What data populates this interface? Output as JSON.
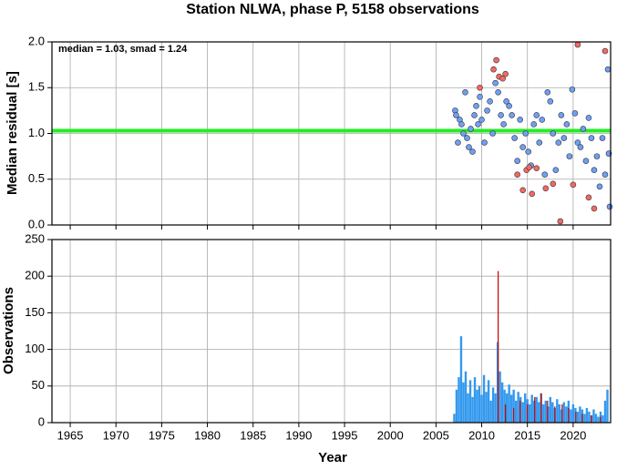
{
  "chart_data": [
    {
      "type": "scatter",
      "title": "Station NLWA, phase P, 5158 observations",
      "ylabel": "Median residual [s]",
      "annotation": "median = 1.03, smad = 1.24",
      "median_line": 1.03,
      "median_color": "#22ee22",
      "xlim": [
        1963,
        2024.1
      ],
      "ylim": [
        0,
        2
      ],
      "yticks": [
        {
          "value": 0,
          "label": "0.0"
        },
        0.5,
        {
          "value": 1,
          "label": "1.0"
        },
        1.5,
        {
          "value": 2,
          "label": "2.0"
        }
      ],
      "grid": true,
      "series": [
        {
          "color": "#6fa0f0",
          "x": [
            2007.1,
            2007.2,
            2007.4,
            2007.6,
            2007.8,
            2008.0,
            2008.2,
            2008.4,
            2008.6,
            2008.8,
            2009.0,
            2009.2,
            2009.4,
            2009.6,
            2009.8,
            2010.0,
            2010.3,
            2010.6,
            2010.9,
            2011.2,
            2011.5,
            2011.8,
            2012.1,
            2012.4,
            2012.7,
            2013.0,
            2013.3,
            2013.6,
            2013.9,
            2014.2,
            2014.5,
            2014.8,
            2015.1,
            2015.4,
            2015.7,
            2016.0,
            2016.3,
            2016.6,
            2016.9,
            2017.2,
            2017.5,
            2017.8,
            2018.1,
            2018.4,
            2018.7,
            2019.0,
            2019.3,
            2019.6,
            2019.9,
            2020.2,
            2020.5,
            2020.8,
            2021.1,
            2021.4,
            2021.7,
            2022.0,
            2022.3,
            2022.6,
            2022.9,
            2023.2,
            2023.5,
            2023.8,
            2024.0,
            2023.9
          ],
          "y": [
            1.25,
            1.2,
            0.9,
            1.15,
            1.1,
            1.0,
            1.45,
            0.95,
            0.85,
            1.05,
            0.8,
            1.2,
            1.3,
            1.1,
            1.4,
            1.15,
            0.9,
            1.25,
            1.35,
            1.0,
            1.55,
            1.45,
            1.2,
            1.1,
            1.35,
            1.3,
            1.2,
            0.95,
            0.7,
            1.15,
            0.85,
            1.0,
            0.8,
            0.65,
            1.1,
            1.2,
            0.9,
            1.15,
            0.55,
            1.45,
            1.35,
            1.0,
            0.6,
            0.9,
            1.2,
            0.95,
            1.1,
            0.75,
            1.48,
            1.22,
            0.9,
            0.85,
            1.05,
            0.7,
            1.17,
            0.95,
            0.6,
            0.75,
            0.42,
            0.95,
            0.55,
            1.7,
            0.2,
            0.78
          ]
        },
        {
          "color": "#f26a5e",
          "x": [
            2009.8,
            2011.3,
            2011.6,
            2011.9,
            2012.3,
            2012.6,
            2013.9,
            2014.5,
            2014.9,
            2015.2,
            2015.5,
            2016.0,
            2017.0,
            2017.8,
            2018.6,
            2020.0,
            2020.5,
            2021.7,
            2022.3,
            2023.5
          ],
          "y": [
            1.5,
            1.7,
            1.8,
            1.62,
            1.6,
            1.65,
            0.55,
            0.38,
            0.6,
            0.63,
            0.34,
            0.62,
            0.4,
            0.45,
            0.04,
            0.44,
            1.97,
            0.3,
            0.18,
            1.9
          ]
        }
      ]
    },
    {
      "type": "bar",
      "xlabel": "Year",
      "ylabel": "Observations",
      "xlim": [
        1963,
        2024.1
      ],
      "ylim": [
        0,
        250
      ],
      "xticks": [
        1965,
        1970,
        1975,
        1980,
        1985,
        1990,
        1995,
        2000,
        2005,
        2010,
        2015,
        2020
      ],
      "yticks": [
        0,
        50,
        100,
        150,
        200,
        250
      ],
      "grid": true,
      "series": [
        {
          "color": "#3399ee",
          "x": [
            2007.0,
            2007.25,
            2007.5,
            2007.75,
            2008.0,
            2008.25,
            2008.5,
            2008.75,
            2009.0,
            2009.25,
            2009.5,
            2009.75,
            2010.0,
            2010.25,
            2010.5,
            2010.75,
            2011.0,
            2011.25,
            2011.5,
            2011.75,
            2012.0,
            2012.25,
            2012.5,
            2012.75,
            2013.0,
            2013.25,
            2013.5,
            2013.75,
            2014.0,
            2014.25,
            2014.5,
            2014.75,
            2015.0,
            2015.25,
            2015.5,
            2015.75,
            2016.0,
            2016.25,
            2016.5,
            2016.75,
            2017.0,
            2017.25,
            2017.5,
            2017.75,
            2018.0,
            2018.25,
            2018.5,
            2018.75,
            2019.0,
            2019.25,
            2019.5,
            2019.75,
            2020.0,
            2020.25,
            2020.5,
            2020.75,
            2021.0,
            2021.25,
            2021.5,
            2021.75,
            2022.0,
            2022.25,
            2022.5,
            2022.75,
            2023.0,
            2023.25,
            2023.5,
            2023.75
          ],
          "values": [
            12,
            45,
            62,
            118,
            55,
            70,
            40,
            58,
            35,
            62,
            45,
            50,
            38,
            65,
            42,
            58,
            30,
            48,
            40,
            110,
            70,
            55,
            45,
            40,
            52,
            38,
            45,
            30,
            42,
            35,
            28,
            40,
            32,
            25,
            38,
            30,
            35,
            28,
            40,
            25,
            30,
            22,
            35,
            28,
            20,
            32,
            25,
            18,
            28,
            22,
            30,
            18,
            25,
            20,
            15,
            22,
            18,
            12,
            20,
            15,
            10,
            18,
            12,
            8,
            15,
            10,
            30,
            45
          ]
        },
        {
          "color": "#cc0000",
          "x": [
            2011.8,
            2012.6,
            2013.5,
            2014.2,
            2015.0,
            2015.8,
            2016.5,
            2017.2,
            2018.0,
            2018.8,
            2019.5,
            2020.3,
            2021.0,
            2022.0,
            2023.0
          ],
          "values": [
            207,
            25,
            20,
            30,
            25,
            35,
            40,
            30,
            22,
            25,
            20,
            15,
            12,
            10,
            8
          ]
        }
      ]
    }
  ]
}
